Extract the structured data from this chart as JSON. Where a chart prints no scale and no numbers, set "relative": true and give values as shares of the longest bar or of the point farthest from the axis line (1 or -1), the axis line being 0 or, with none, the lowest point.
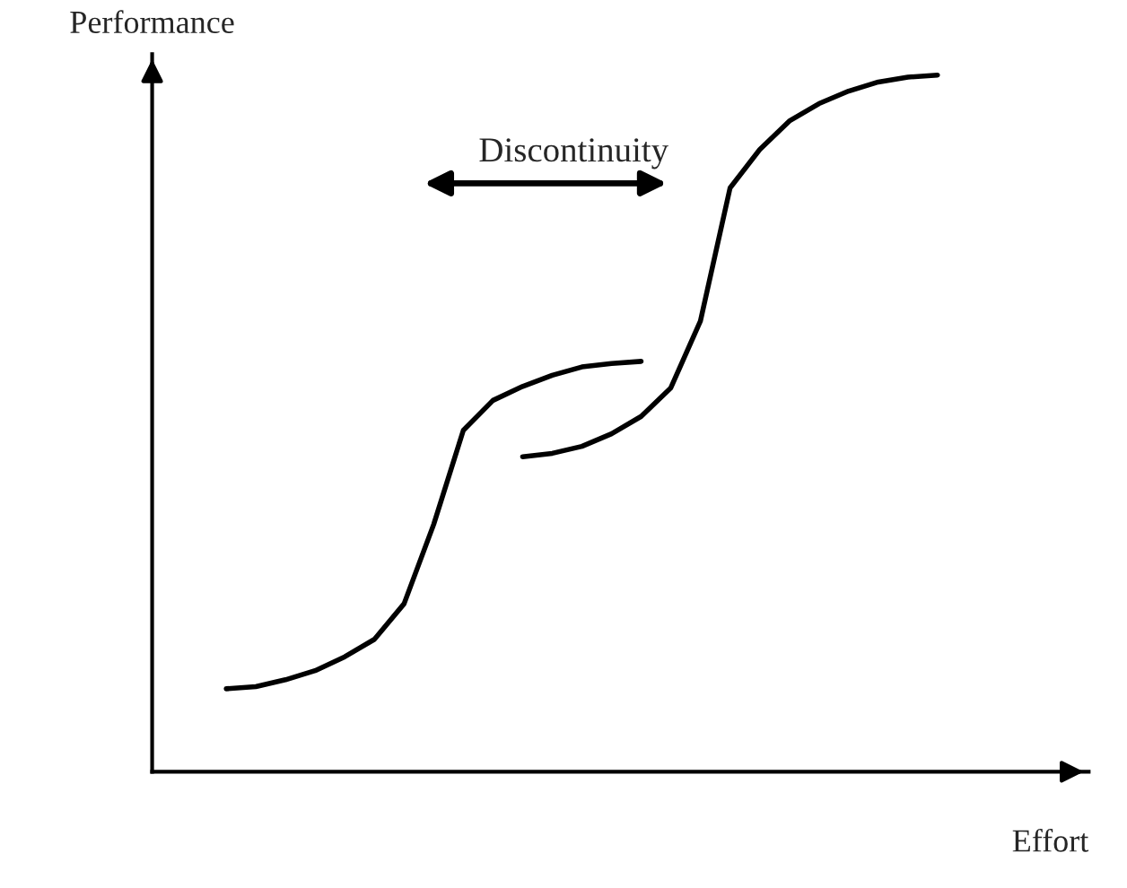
{
  "chart_data": {
    "type": "line",
    "relative": true,
    "xlabel": "Effort",
    "ylabel": "Performance",
    "annotations": [
      "Discontinuity"
    ],
    "legend": false,
    "marker": "none",
    "line_style": "solid",
    "categories": [
      null,
      null,
      null,
      null,
      null,
      null,
      null,
      null,
      null,
      null,
      null,
      null,
      null,
      null,
      null,
      null,
      null,
      null,
      null,
      null,
      null,
      null,
      null,
      null,
      null
    ],
    "series": [
      {
        "color": "#000000",
        "values": [
          0.119,
          0.122,
          0.132,
          0.145,
          0.165,
          0.19,
          0.241,
          0.355,
          0.49,
          0.533,
          0.553,
          0.569,
          0.581,
          0.586,
          0.589,
          null,
          null,
          null,
          null,
          null,
          null,
          null,
          null,
          null,
          null
        ]
      },
      {
        "color": "#000000",
        "values": [
          null,
          null,
          null,
          null,
          null,
          null,
          null,
          null,
          null,
          null,
          0.452,
          0.457,
          0.467,
          0.485,
          0.51,
          0.551,
          0.647,
          0.838,
          0.893,
          0.934,
          0.959,
          0.977,
          0.99,
          0.997,
          1.0
        ]
      }
    ]
  }
}
